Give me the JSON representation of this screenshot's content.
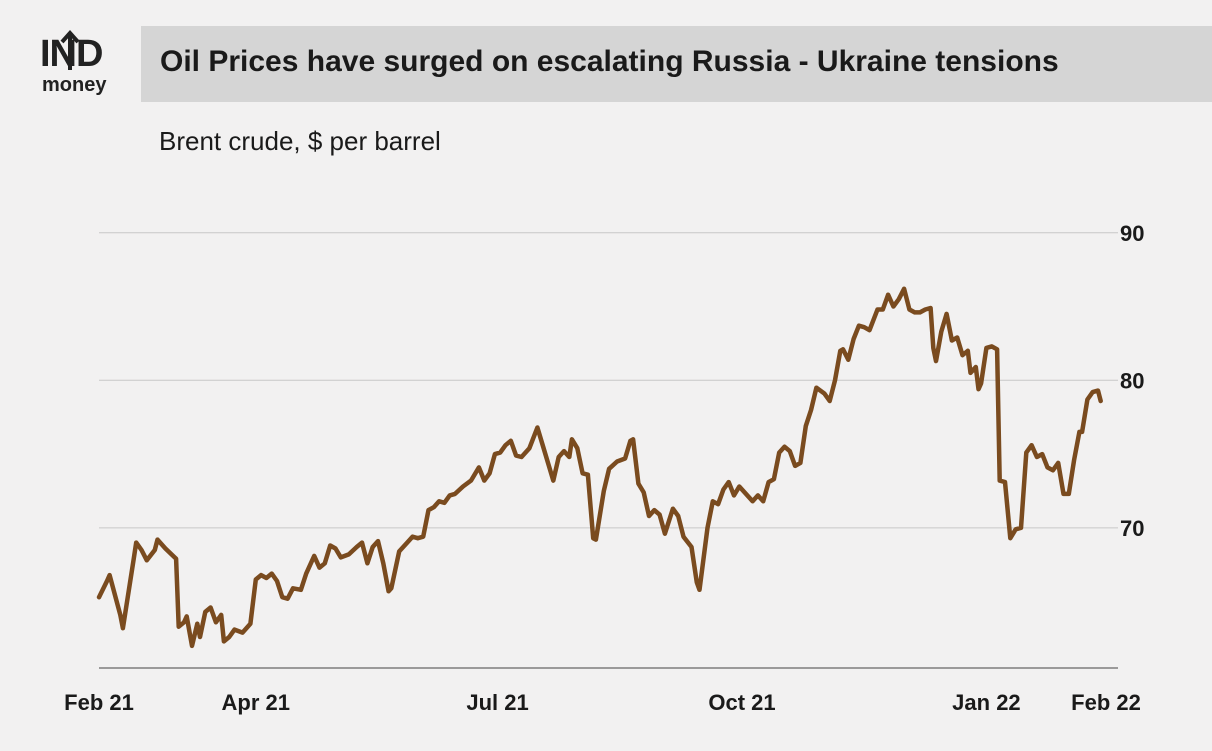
{
  "brand": {
    "logo_main": "IND",
    "logo_sub": "money"
  },
  "header": {
    "title": "Oil Prices have surged on escalating Russia - Ukraine tensions"
  },
  "chart_data": {
    "type": "line",
    "subtitle": "Brent crude, $ per barrel",
    "x_range": [
      "2021-02-01",
      "2022-02-15"
    ],
    "ylim": [
      60.5,
      99
    ],
    "y_ticks": [
      70,
      80,
      90
    ],
    "y_axis_position": "right",
    "grid": true,
    "x_ticks": [
      {
        "date": "2021-02-01",
        "label": "Feb 21"
      },
      {
        "date": "2021-04-01",
        "label": "Apr 21"
      },
      {
        "date": "2021-07-01",
        "label": "Jul 21"
      },
      {
        "date": "2021-10-01",
        "label": "Oct 21"
      },
      {
        "date": "2022-01-01",
        "label": "Jan 22"
      },
      {
        "date": "2022-02-15",
        "label": "Feb 22"
      }
    ],
    "line_color": "#7a4b1f",
    "series": [
      {
        "points": [
          [
            "2021-02-01",
            65.3
          ],
          [
            "2021-02-04",
            66.4
          ],
          [
            "2021-02-05",
            66.8
          ],
          [
            "2021-02-09",
            64.1
          ],
          [
            "2021-02-10",
            63.2
          ],
          [
            "2021-02-14",
            67.8
          ],
          [
            "2021-02-15",
            69.0
          ],
          [
            "2021-02-17",
            68.5
          ],
          [
            "2021-02-19",
            67.8
          ],
          [
            "2021-02-22",
            68.5
          ],
          [
            "2021-02-23",
            69.2
          ],
          [
            "2021-02-26",
            68.6
          ],
          [
            "2021-03-02",
            67.9
          ],
          [
            "2021-03-03",
            63.3
          ],
          [
            "2021-03-05",
            63.6
          ],
          [
            "2021-03-06",
            64.0
          ],
          [
            "2021-03-08",
            62.0
          ],
          [
            "2021-03-10",
            63.5
          ],
          [
            "2021-03-11",
            62.6
          ],
          [
            "2021-03-13",
            64.3
          ],
          [
            "2021-03-15",
            64.6
          ],
          [
            "2021-03-17",
            63.6
          ],
          [
            "2021-03-19",
            64.1
          ],
          [
            "2021-03-20",
            62.3
          ],
          [
            "2021-03-22",
            62.6
          ],
          [
            "2021-03-24",
            63.1
          ],
          [
            "2021-03-27",
            62.9
          ],
          [
            "2021-03-30",
            63.5
          ],
          [
            "2021-04-01",
            66.5
          ],
          [
            "2021-04-03",
            66.8
          ],
          [
            "2021-04-05",
            66.6
          ],
          [
            "2021-04-07",
            66.9
          ],
          [
            "2021-04-09",
            66.4
          ],
          [
            "2021-04-11",
            65.3
          ],
          [
            "2021-04-13",
            65.2
          ],
          [
            "2021-04-15",
            65.9
          ],
          [
            "2021-04-18",
            65.8
          ],
          [
            "2021-04-20",
            66.9
          ],
          [
            "2021-04-23",
            68.1
          ],
          [
            "2021-04-25",
            67.3
          ],
          [
            "2021-04-27",
            67.6
          ],
          [
            "2021-04-29",
            68.8
          ],
          [
            "2021-05-01",
            68.6
          ],
          [
            "2021-05-03",
            68.0
          ],
          [
            "2021-05-06",
            68.2
          ],
          [
            "2021-05-09",
            68.7
          ],
          [
            "2021-05-11",
            69.0
          ],
          [
            "2021-05-13",
            67.6
          ],
          [
            "2021-05-15",
            68.7
          ],
          [
            "2021-05-17",
            69.1
          ],
          [
            "2021-05-19",
            67.6
          ],
          [
            "2021-05-21",
            65.7
          ],
          [
            "2021-05-22",
            65.9
          ],
          [
            "2021-05-25",
            68.4
          ],
          [
            "2021-05-28",
            69.0
          ],
          [
            "2021-05-30",
            69.4
          ],
          [
            "2021-06-01",
            69.3
          ],
          [
            "2021-06-03",
            69.4
          ],
          [
            "2021-06-05",
            71.2
          ],
          [
            "2021-06-07",
            71.4
          ],
          [
            "2021-06-09",
            71.8
          ],
          [
            "2021-06-11",
            71.7
          ],
          [
            "2021-06-13",
            72.2
          ],
          [
            "2021-06-15",
            72.3
          ],
          [
            "2021-06-18",
            72.8
          ],
          [
            "2021-06-21",
            73.2
          ],
          [
            "2021-06-24",
            74.1
          ],
          [
            "2021-06-26",
            73.2
          ],
          [
            "2021-06-28",
            73.7
          ],
          [
            "2021-06-30",
            75.0
          ],
          [
            "2021-07-02",
            75.1
          ],
          [
            "2021-07-04",
            75.6
          ],
          [
            "2021-07-06",
            75.9
          ],
          [
            "2021-07-08",
            74.9
          ],
          [
            "2021-07-10",
            74.8
          ],
          [
            "2021-07-13",
            75.4
          ],
          [
            "2021-07-16",
            76.8
          ],
          [
            "2021-07-18",
            75.6
          ],
          [
            "2021-07-20",
            74.4
          ],
          [
            "2021-07-22",
            73.2
          ],
          [
            "2021-07-24",
            74.8
          ],
          [
            "2021-07-26",
            75.2
          ],
          [
            "2021-07-28",
            74.8
          ],
          [
            "2021-07-29",
            76.0
          ],
          [
            "2021-07-31",
            75.4
          ],
          [
            "2021-08-02",
            73.7
          ],
          [
            "2021-08-04",
            73.6
          ],
          [
            "2021-08-06",
            69.3
          ],
          [
            "2021-08-07",
            69.2
          ],
          [
            "2021-08-10",
            72.5
          ],
          [
            "2021-08-12",
            74.0
          ],
          [
            "2021-08-15",
            74.5
          ],
          [
            "2021-08-18",
            74.7
          ],
          [
            "2021-08-20",
            75.9
          ],
          [
            "2021-08-21",
            76.0
          ],
          [
            "2021-08-23",
            73.0
          ],
          [
            "2021-08-25",
            72.4
          ],
          [
            "2021-08-27",
            70.8
          ],
          [
            "2021-08-29",
            71.2
          ],
          [
            "2021-08-31",
            70.9
          ],
          [
            "2021-09-02",
            69.6
          ],
          [
            "2021-09-05",
            71.3
          ],
          [
            "2021-09-07",
            70.8
          ],
          [
            "2021-09-09",
            69.4
          ],
          [
            "2021-09-12",
            68.7
          ],
          [
            "2021-09-14",
            66.3
          ],
          [
            "2021-09-15",
            65.8
          ],
          [
            "2021-09-18",
            70.0
          ],
          [
            "2021-09-20",
            71.8
          ],
          [
            "2021-09-22",
            71.6
          ],
          [
            "2021-09-24",
            72.6
          ],
          [
            "2021-09-26",
            73.1
          ],
          [
            "2021-09-28",
            72.2
          ],
          [
            "2021-09-30",
            72.8
          ],
          [
            "2021-10-03",
            72.2
          ],
          [
            "2021-10-05",
            71.8
          ],
          [
            "2021-10-07",
            72.2
          ],
          [
            "2021-10-09",
            71.8
          ],
          [
            "2021-10-11",
            73.1
          ],
          [
            "2021-10-13",
            73.3
          ],
          [
            "2021-10-15",
            75.1
          ],
          [
            "2021-10-17",
            75.5
          ],
          [
            "2021-10-19",
            75.2
          ],
          [
            "2021-10-21",
            74.2
          ],
          [
            "2021-10-23",
            74.4
          ],
          [
            "2021-10-25",
            76.9
          ],
          [
            "2021-10-27",
            78.0
          ],
          [
            "2021-10-29",
            79.5
          ],
          [
            "2021-11-01",
            79.1
          ],
          [
            "2021-11-03",
            78.6
          ],
          [
            "2021-11-05",
            80.0
          ],
          [
            "2021-11-07",
            82.0
          ],
          [
            "2021-11-08",
            82.1
          ],
          [
            "2021-11-10",
            81.4
          ],
          [
            "2021-11-12",
            82.8
          ],
          [
            "2021-11-14",
            83.7
          ],
          [
            "2021-11-16",
            83.6
          ],
          [
            "2021-11-18",
            83.4
          ],
          [
            "2021-11-21",
            84.8
          ],
          [
            "2021-11-23",
            84.8
          ],
          [
            "2021-11-25",
            85.8
          ],
          [
            "2021-11-27",
            85.0
          ],
          [
            "2021-11-29",
            85.5
          ],
          [
            "2021-12-01",
            86.2
          ],
          [
            "2021-12-03",
            84.8
          ],
          [
            "2021-12-05",
            84.6
          ],
          [
            "2021-12-07",
            84.6
          ],
          [
            "2021-12-09",
            84.8
          ],
          [
            "2021-12-11",
            84.9
          ],
          [
            "2021-12-12",
            82.2
          ],
          [
            "2021-12-13",
            81.3
          ],
          [
            "2021-12-15",
            83.3
          ],
          [
            "2021-12-17",
            84.5
          ],
          [
            "2021-12-19",
            82.7
          ],
          [
            "2021-12-21",
            82.9
          ],
          [
            "2021-12-23",
            81.7
          ],
          [
            "2021-12-25",
            82.0
          ],
          [
            "2021-12-26",
            80.5
          ],
          [
            "2021-12-28",
            80.9
          ],
          [
            "2021-12-29",
            79.4
          ],
          [
            "2021-12-30",
            79.8
          ],
          [
            "2022-01-01",
            82.2
          ],
          [
            "2022-01-03",
            82.3
          ],
          [
            "2022-01-05",
            82.1
          ],
          [
            "2022-01-06",
            73.2
          ],
          [
            "2022-01-08",
            73.1
          ],
          [
            "2022-01-10",
            69.3
          ],
          [
            "2022-01-12",
            69.9
          ],
          [
            "2022-01-14",
            70.0
          ],
          [
            "2022-01-16",
            75.1
          ],
          [
            "2022-01-18",
            75.6
          ],
          [
            "2022-01-20",
            74.8
          ],
          [
            "2022-01-22",
            75.0
          ],
          [
            "2022-01-24",
            74.1
          ],
          [
            "2022-01-26",
            73.9
          ],
          [
            "2022-01-28",
            74.4
          ],
          [
            "2022-01-30",
            72.3
          ],
          [
            "2022-02-01",
            72.3
          ],
          [
            "2022-02-03",
            74.6
          ],
          [
            "2022-02-05",
            76.5
          ],
          [
            "2022-02-06",
            76.5
          ],
          [
            "2022-02-08",
            78.7
          ],
          [
            "2022-02-10",
            79.2
          ],
          [
            "2022-02-12",
            79.3
          ],
          [
            "2022-02-13",
            78.6
          ]
        ]
      }
    ]
  }
}
